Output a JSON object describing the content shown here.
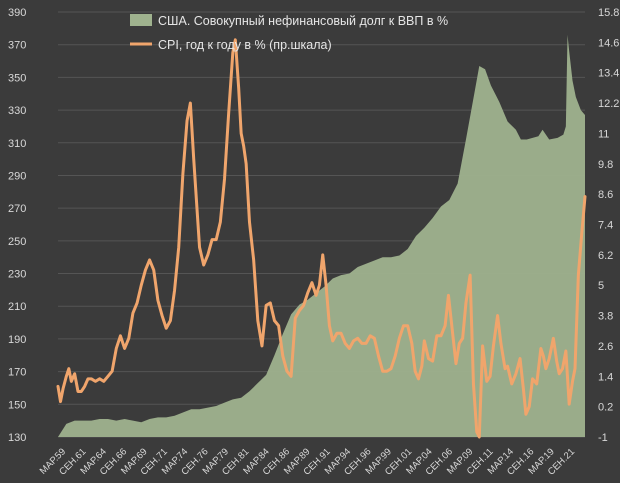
{
  "chart_data": {
    "type": "area",
    "left_axis": {
      "min": 130,
      "max": 390,
      "ticks": [
        130,
        150,
        170,
        190,
        210,
        230,
        250,
        270,
        290,
        310,
        330,
        350,
        370,
        390
      ]
    },
    "right_axis": {
      "min": -1,
      "max": 15.8,
      "ticks": [
        "-1",
        "0.2",
        "1.4",
        "2.6",
        "3.8",
        "5",
        "6.2",
        "7.4",
        "8.6",
        "9.8",
        "11",
        "12.2",
        "13.4",
        "14.6",
        "15.8"
      ]
    },
    "x_ticks": [
      "МАР.59",
      "СЕН.61",
      "МАР.64",
      "СЕН.66",
      "МАР.69",
      "СЕН.71",
      "МАР.74",
      "СЕН.76",
      "МАР.79",
      "СЕН.81",
      "МАР.84",
      "СЕН.86",
      "МАР.89",
      "СЕН.91",
      "МАР.94",
      "СЕН.96",
      "МАР.99",
      "СЕН.01",
      "МАР.04",
      "СЕН.06",
      "МАР.09",
      "СЕН.11",
      "МАР.14",
      "СЕН.16",
      "МАР.19",
      "СЕН.21"
    ],
    "x_range": [
      1959.0,
      2022.3
    ],
    "grid": true,
    "legend_position": "top-center",
    "series": [
      {
        "name": "США. Совокупный нефинансовый долг к ВВП в %",
        "axis": "left",
        "color": "#9fb28e",
        "points": [
          [
            1959.0,
            130
          ],
          [
            1960.0,
            138
          ],
          [
            1961.0,
            140
          ],
          [
            1962.0,
            140
          ],
          [
            1963.0,
            140
          ],
          [
            1964.0,
            141
          ],
          [
            1965.0,
            141
          ],
          [
            1966.0,
            140
          ],
          [
            1967.0,
            141
          ],
          [
            1968.0,
            140
          ],
          [
            1969.0,
            139
          ],
          [
            1970.0,
            141
          ],
          [
            1971.0,
            142
          ],
          [
            1972.0,
            142
          ],
          [
            1973.0,
            143
          ],
          [
            1974.0,
            145
          ],
          [
            1975.0,
            147
          ],
          [
            1976.0,
            147
          ],
          [
            1977.0,
            148
          ],
          [
            1978.0,
            149
          ],
          [
            1979.0,
            151
          ],
          [
            1980.0,
            153
          ],
          [
            1981.0,
            154
          ],
          [
            1982.0,
            158
          ],
          [
            1983.0,
            163
          ],
          [
            1984.0,
            168
          ],
          [
            1985.0,
            180
          ],
          [
            1986.0,
            193
          ],
          [
            1987.0,
            205
          ],
          [
            1988.0,
            211
          ],
          [
            1989.0,
            214
          ],
          [
            1990.0,
            218
          ],
          [
            1991.0,
            222
          ],
          [
            1992.0,
            227
          ],
          [
            1993.0,
            229
          ],
          [
            1994.0,
            230
          ],
          [
            1995.0,
            234
          ],
          [
            1996.0,
            236
          ],
          [
            1997.0,
            238
          ],
          [
            1998.0,
            240
          ],
          [
            1999.0,
            240
          ],
          [
            2000.0,
            241
          ],
          [
            2001.0,
            245
          ],
          [
            2002.0,
            253
          ],
          [
            2003.0,
            258
          ],
          [
            2004.0,
            264
          ],
          [
            2005.0,
            271
          ],
          [
            2006.0,
            275
          ],
          [
            2007.0,
            285
          ],
          [
            2008.0,
            312
          ],
          [
            2009.0,
            340
          ],
          [
            2009.6,
            357
          ],
          [
            2010.3,
            355
          ],
          [
            2011.0,
            345
          ],
          [
            2012.0,
            335
          ],
          [
            2013.0,
            323
          ],
          [
            2014.0,
            318
          ],
          [
            2014.6,
            312
          ],
          [
            2015.3,
            312
          ],
          [
            2016.0,
            313
          ],
          [
            2016.7,
            314
          ],
          [
            2017.2,
            318
          ],
          [
            2017.6,
            315
          ],
          [
            2018.0,
            312
          ],
          [
            2019.0,
            313
          ],
          [
            2019.7,
            315
          ],
          [
            2020.0,
            320
          ],
          [
            2020.2,
            376
          ],
          [
            2020.4,
            366
          ],
          [
            2020.8,
            348
          ],
          [
            2021.2,
            338
          ],
          [
            2021.8,
            330
          ],
          [
            2022.3,
            327
          ]
        ]
      },
      {
        "name": "CPI, год к году в % (пр.шкала)",
        "axis": "right",
        "color": "#f0a56c",
        "points": [
          [
            1959.0,
            1.0
          ],
          [
            1959.3,
            0.4
          ],
          [
            1959.6,
            0.9
          ],
          [
            1960.0,
            1.4
          ],
          [
            1960.3,
            1.7
          ],
          [
            1960.6,
            1.2
          ],
          [
            1961.0,
            1.5
          ],
          [
            1961.4,
            0.8
          ],
          [
            1961.8,
            0.8
          ],
          [
            1962.2,
            1.0
          ],
          [
            1962.6,
            1.3
          ],
          [
            1963.0,
            1.3
          ],
          [
            1963.5,
            1.2
          ],
          [
            1964.0,
            1.3
          ],
          [
            1964.5,
            1.2
          ],
          [
            1965.0,
            1.4
          ],
          [
            1965.5,
            1.6
          ],
          [
            1966.0,
            2.5
          ],
          [
            1966.5,
            3.0
          ],
          [
            1967.0,
            2.5
          ],
          [
            1967.5,
            2.9
          ],
          [
            1968.0,
            3.9
          ],
          [
            1968.5,
            4.3
          ],
          [
            1969.0,
            5.0
          ],
          [
            1969.5,
            5.6
          ],
          [
            1970.0,
            6.0
          ],
          [
            1970.5,
            5.6
          ],
          [
            1971.0,
            4.4
          ],
          [
            1971.5,
            3.8
          ],
          [
            1972.0,
            3.3
          ],
          [
            1972.5,
            3.6
          ],
          [
            1973.0,
            4.8
          ],
          [
            1973.5,
            6.5
          ],
          [
            1974.0,
            9.4
          ],
          [
            1974.5,
            11.5
          ],
          [
            1974.9,
            12.2
          ],
          [
            1975.3,
            10.0
          ],
          [
            1975.7,
            8.0
          ],
          [
            1976.0,
            6.5
          ],
          [
            1976.5,
            5.8
          ],
          [
            1977.0,
            6.2
          ],
          [
            1977.5,
            6.8
          ],
          [
            1978.0,
            6.8
          ],
          [
            1978.5,
            7.5
          ],
          [
            1979.0,
            9.2
          ],
          [
            1979.5,
            11.8
          ],
          [
            1980.0,
            14.2
          ],
          [
            1980.3,
            14.7
          ],
          [
            1980.7,
            12.8
          ],
          [
            1981.0,
            11.0
          ],
          [
            1981.3,
            10.5
          ],
          [
            1981.6,
            9.8
          ],
          [
            1982.0,
            7.5
          ],
          [
            1982.5,
            6.0
          ],
          [
            1983.0,
            3.6
          ],
          [
            1983.5,
            2.6
          ],
          [
            1984.0,
            4.2
          ],
          [
            1984.5,
            4.3
          ],
          [
            1985.0,
            3.6
          ],
          [
            1985.5,
            3.4
          ],
          [
            1986.0,
            2.2
          ],
          [
            1986.5,
            1.6
          ],
          [
            1987.0,
            1.4
          ],
          [
            1987.5,
            3.7
          ],
          [
            1988.0,
            4.0
          ],
          [
            1988.5,
            4.2
          ],
          [
            1989.0,
            4.7
          ],
          [
            1989.5,
            5.1
          ],
          [
            1990.0,
            4.6
          ],
          [
            1990.4,
            5.0
          ],
          [
            1990.8,
            6.2
          ],
          [
            1991.2,
            5.0
          ],
          [
            1991.6,
            3.4
          ],
          [
            1992.0,
            2.8
          ],
          [
            1992.5,
            3.1
          ],
          [
            1993.0,
            3.1
          ],
          [
            1993.5,
            2.7
          ],
          [
            1994.0,
            2.5
          ],
          [
            1994.5,
            2.8
          ],
          [
            1995.0,
            2.9
          ],
          [
            1995.5,
            2.7
          ],
          [
            1996.0,
            2.7
          ],
          [
            1996.5,
            3.0
          ],
          [
            1997.0,
            2.9
          ],
          [
            1997.5,
            2.2
          ],
          [
            1998.0,
            1.6
          ],
          [
            1998.5,
            1.6
          ],
          [
            1999.0,
            1.7
          ],
          [
            1999.5,
            2.2
          ],
          [
            2000.0,
            2.9
          ],
          [
            2000.5,
            3.4
          ],
          [
            2001.0,
            3.4
          ],
          [
            2001.5,
            2.7
          ],
          [
            2001.9,
            1.6
          ],
          [
            2002.3,
            1.3
          ],
          [
            2002.7,
            1.8
          ],
          [
            2003.0,
            2.8
          ],
          [
            2003.5,
            2.1
          ],
          [
            2004.0,
            2.0
          ],
          [
            2004.5,
            3.0
          ],
          [
            2005.0,
            3.0
          ],
          [
            2005.5,
            3.4
          ],
          [
            2005.9,
            4.6
          ],
          [
            2006.3,
            3.4
          ],
          [
            2006.8,
            1.9
          ],
          [
            2007.2,
            2.7
          ],
          [
            2007.6,
            2.9
          ],
          [
            2008.0,
            4.3
          ],
          [
            2008.5,
            5.4
          ],
          [
            2008.9,
            1.1
          ],
          [
            2009.3,
            -0.8
          ],
          [
            2009.6,
            -1.0
          ],
          [
            2010.0,
            2.6
          ],
          [
            2010.5,
            1.2
          ],
          [
            2010.9,
            1.4
          ],
          [
            2011.3,
            2.6
          ],
          [
            2011.8,
            3.8
          ],
          [
            2012.2,
            2.7
          ],
          [
            2012.7,
            1.7
          ],
          [
            2013.0,
            1.8
          ],
          [
            2013.5,
            1.1
          ],
          [
            2014.0,
            1.5
          ],
          [
            2014.5,
            2.1
          ],
          [
            2014.9,
            0.9
          ],
          [
            2015.2,
            -0.1
          ],
          [
            2015.6,
            0.2
          ],
          [
            2016.0,
            1.3
          ],
          [
            2016.5,
            1.1
          ],
          [
            2017.0,
            2.5
          ],
          [
            2017.3,
            2.2
          ],
          [
            2017.6,
            1.7
          ],
          [
            2018.0,
            2.1
          ],
          [
            2018.5,
            2.9
          ],
          [
            2018.9,
            2.0
          ],
          [
            2019.2,
            1.5
          ],
          [
            2019.6,
            1.7
          ],
          [
            2020.0,
            2.4
          ],
          [
            2020.4,
            0.3
          ],
          [
            2020.8,
            1.2
          ],
          [
            2021.1,
            1.7
          ],
          [
            2021.5,
            5.4
          ],
          [
            2021.9,
            7.0
          ],
          [
            2022.3,
            8.5
          ]
        ]
      }
    ]
  }
}
